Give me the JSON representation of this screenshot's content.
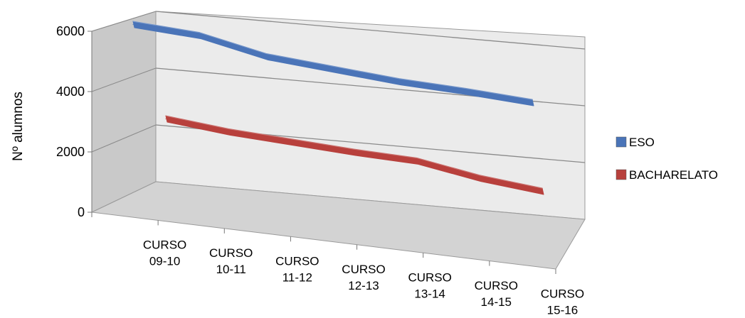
{
  "chart_data": {
    "type": "line",
    "style": "3d-ribbon",
    "ylabel": "Nº alumnos",
    "xlabel": "",
    "ylim": [
      0,
      6000
    ],
    "yticks": [
      0,
      2000,
      4000,
      6000
    ],
    "grid": true,
    "legend_position": "right",
    "categories": [
      [
        "CURSO",
        "09-10"
      ],
      [
        "CURSO",
        "10-11"
      ],
      [
        "CURSO",
        "11-12"
      ],
      [
        "CURSO",
        "12-13"
      ],
      [
        "CURSO",
        "13-14"
      ],
      [
        "CURSO",
        "14-15"
      ],
      [
        "CURSO",
        "15-16"
      ]
    ],
    "series": [
      {
        "name": "ESO",
        "color": "#4a74b8",
        "values": [
          5950,
          5800,
          5300,
          5100,
          4900,
          4800,
          4650
        ]
      },
      {
        "name": "BACHARELATO",
        "color": "#b8403c",
        "values": [
          3200,
          2950,
          2800,
          2650,
          2550,
          2150,
          1900
        ]
      }
    ]
  }
}
